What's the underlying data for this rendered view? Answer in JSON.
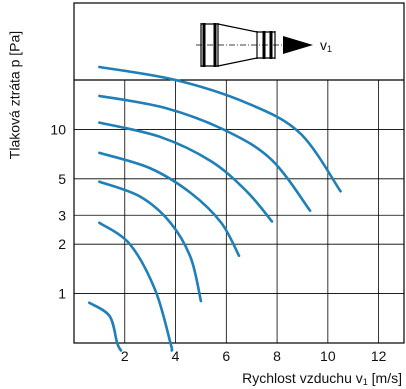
{
  "chart_data": {
    "type": "line",
    "title": "",
    "xlabel": "Rychlost vzduchu v",
    "xlabel_sub": "1",
    "xlabel_unit": " [m/s]",
    "ylabel": "Tlaková ztráta p [Pa]",
    "xlim": [
      0,
      13
    ],
    "x_ticks": [
      {
        "value": 2,
        "label": "2"
      },
      {
        "value": 4,
        "label": "4"
      },
      {
        "value": 6,
        "label": "6"
      },
      {
        "value": 8,
        "label": "8"
      },
      {
        "value": 10,
        "label": "10"
      },
      {
        "value": 12,
        "label": "12"
      }
    ],
    "y_ticks": [
      {
        "value": 1,
        "label": "1"
      },
      {
        "value": 2,
        "label": "2"
      },
      {
        "value": 3,
        "label": "3"
      },
      {
        "value": 5,
        "label": "5"
      },
      {
        "value": 10,
        "label": "10"
      }
    ],
    "y_grid": [
      1,
      2,
      3,
      5,
      10,
      20
    ],
    "grid": true,
    "line_color": "#1f7fb8",
    "series": [
      {
        "x": [
          0.6,
          1.4,
          1.7,
          1.85
        ],
        "y": [
          0.88,
          0.73,
          0.5,
          0.45
        ]
      },
      {
        "x": [
          1.0,
          2.2,
          3.2,
          3.8,
          3.85
        ],
        "y": [
          2.7,
          2.0,
          1.05,
          0.5,
          0.45
        ]
      },
      {
        "x": [
          1.0,
          2.6,
          3.8,
          4.6,
          5.0
        ],
        "y": [
          4.8,
          3.9,
          2.7,
          1.65,
          0.9
        ]
      },
      {
        "x": [
          1.0,
          3.0,
          4.6,
          5.8,
          6.5
        ],
        "y": [
          7.2,
          5.8,
          4.1,
          2.7,
          1.7
        ]
      },
      {
        "x": [
          1.0,
          3.4,
          5.4,
          6.8,
          7.8
        ],
        "y": [
          11.0,
          9.0,
          6.4,
          4.2,
          2.75
        ]
      },
      {
        "x": [
          1.0,
          3.6,
          6.0,
          7.8,
          9.3
        ],
        "y": [
          16.0,
          13.5,
          9.8,
          6.5,
          3.2
        ]
      },
      {
        "x": [
          1.0,
          4.0,
          6.8,
          8.9,
          10.5
        ],
        "y": [
          24.0,
          20.0,
          14.5,
          9.5,
          4.2
        ]
      }
    ]
  },
  "diagram": {
    "flow_label": "v",
    "flow_label_sub": "1"
  }
}
